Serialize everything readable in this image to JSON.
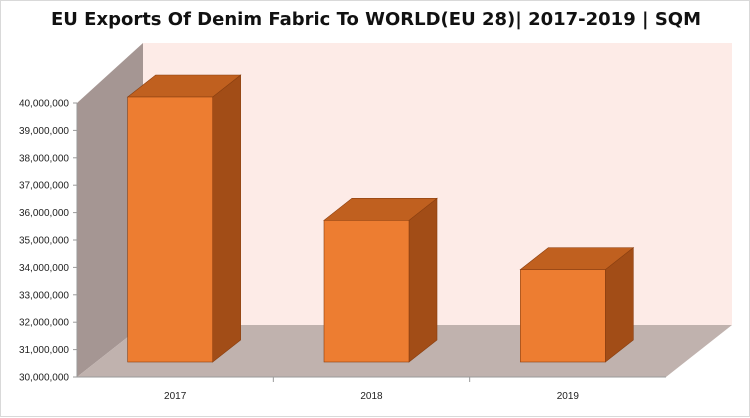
{
  "chart_data": {
    "type": "bar",
    "title": "EU Exports Of Denim Fabric To WORLD(EU 28)| 2017-2019 | SQM",
    "categories": [
      "2017",
      "2018",
      "2019"
    ],
    "values": [
      40000000,
      35500000,
      33700000
    ],
    "ylim": [
      30000000,
      40000000
    ],
    "yticks": [
      "30,000,000",
      "31,000,000",
      "32,000,000",
      "33,000,000",
      "34,000,000",
      "35,000,000",
      "36,000,000",
      "37,000,000",
      "38,000,000",
      "39,000,000",
      "40,000,000"
    ],
    "xlabel": "",
    "ylabel": "",
    "three_d": true,
    "colors": {
      "bar_front": "#ed7d31",
      "bar_top": "#c0601f",
      "bar_side": "#a24d17",
      "back_wall": "#fdebe7",
      "side_wall": "#a59693",
      "floor": "#c0b2ae"
    }
  }
}
